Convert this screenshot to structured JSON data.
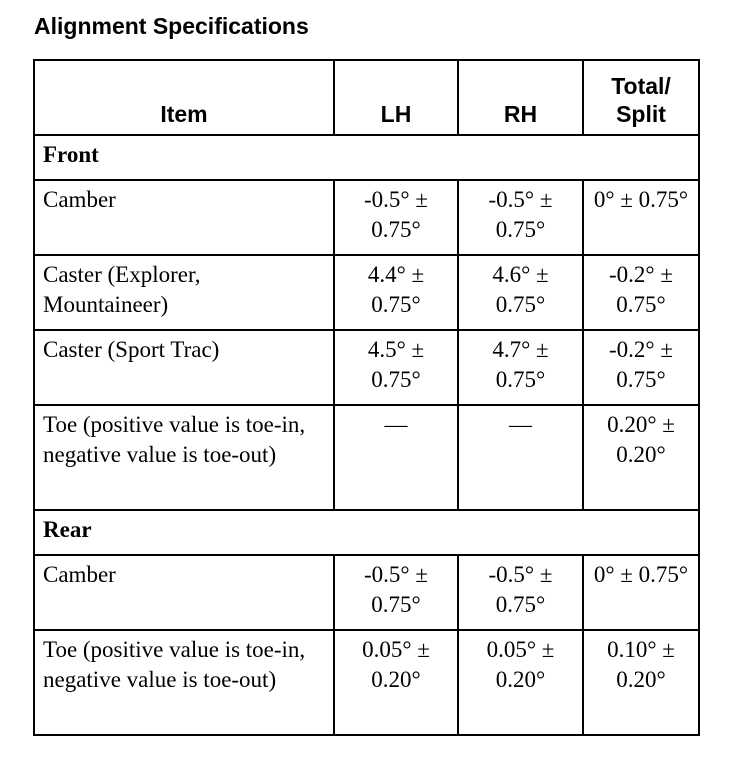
{
  "title": "Alignment Specifications",
  "headers": [
    "Item",
    "LH",
    "RH",
    "Total/ Split"
  ],
  "sections": [
    {
      "name": "Front",
      "rows": [
        {
          "item": "Camber",
          "lh": "-0.5° ± 0.75°",
          "rh": "-0.5° ± 0.75°",
          "total": "0° ± 0.75°"
        },
        {
          "item": "Caster (Explorer, Mountaineer)",
          "lh": "4.4° ± 0.75°",
          "rh": "4.6° ± 0.75°",
          "total": "-0.2° ± 0.75°"
        },
        {
          "item": "Caster (Sport Trac)",
          "lh": "4.5° ± 0.75°",
          "rh": "4.7° ± 0.75°",
          "total": "-0.2° ± 0.75°"
        },
        {
          "item": "Toe (positive value is toe-in, negative value is toe-out)",
          "lh": "—",
          "rh": "—",
          "total": "0.20° ± 0.20°"
        }
      ]
    },
    {
      "name": "Rear",
      "rows": [
        {
          "item": "Camber",
          "lh": "-0.5° ± 0.75°",
          "rh": "-0.5° ± 0.75°",
          "total": "0° ± 0.75°"
        },
        {
          "item": "Toe (positive value is toe-in, negative value is toe-out)",
          "lh": "0.05° ± 0.20°",
          "rh": "0.05° ± 0.20°",
          "total": "0.10° ± 0.20°"
        }
      ]
    }
  ]
}
